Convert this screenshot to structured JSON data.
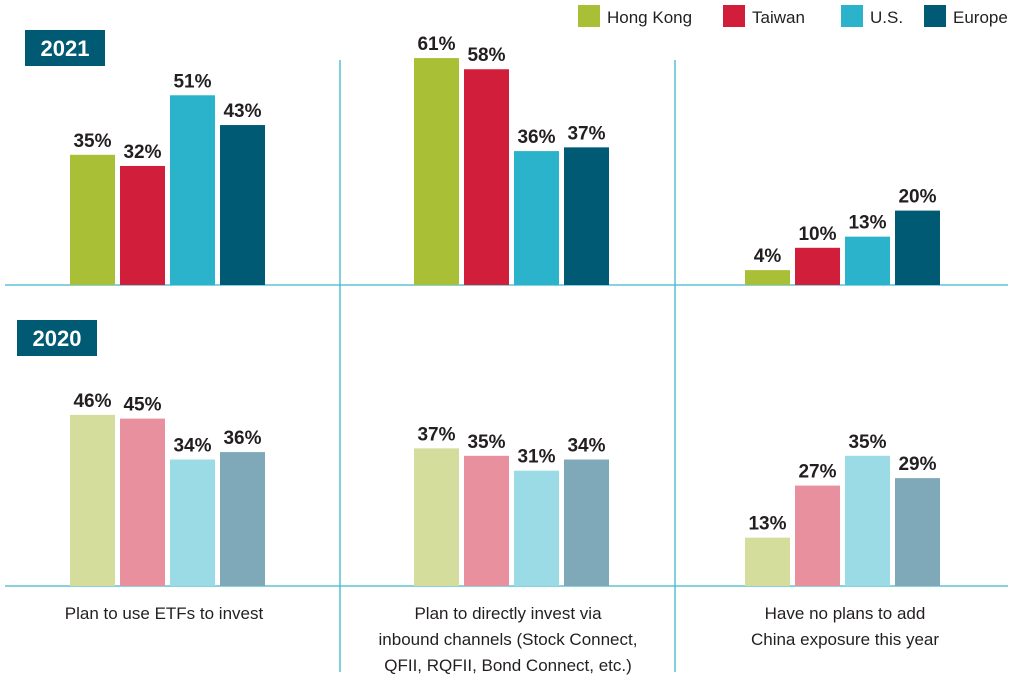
{
  "chart_data": {
    "type": "bar",
    "categories": [
      "Plan to use ETFs to invest",
      "Plan to directly invest via inbound channels (Stock Connect, QFII, RQFII, Bond Connect, etc.)",
      "Have no plans to add China exposure this year"
    ],
    "category_lines": [
      [
        "Plan to use ETFs to invest"
      ],
      [
        "Plan to directly invest via",
        "inbound channels (Stock Connect,",
        "QFII, RQFII, Bond Connect, etc.)"
      ],
      [
        "Have no plans to add",
        "China exposure this year"
      ]
    ],
    "legend": [
      "Hong Kong",
      "Taiwan",
      "U.S.",
      "Europe"
    ],
    "legend_position": "top-right",
    "panels": [
      {
        "year": "2021",
        "series": [
          {
            "name": "Hong Kong",
            "color": "#a9bf35",
            "values": [
              35,
              61,
              4
            ]
          },
          {
            "name": "Taiwan",
            "color": "#d11f3b",
            "values": [
              32,
              58,
              10
            ]
          },
          {
            "name": "U.S.",
            "color": "#2ab3cb",
            "values": [
              51,
              36,
              13
            ]
          },
          {
            "name": "Europe",
            "color": "#005a73",
            "values": [
              43,
              37,
              20
            ]
          }
        ]
      },
      {
        "year": "2020",
        "series": [
          {
            "name": "Hong Kong",
            "color": "#d5dd9c",
            "values": [
              46,
              37,
              13
            ]
          },
          {
            "name": "Taiwan",
            "color": "#e8909d",
            "values": [
              45,
              35,
              27
            ]
          },
          {
            "name": "U.S.",
            "color": "#9adbe6",
            "values": [
              34,
              31,
              35
            ]
          },
          {
            "name": "Europe",
            "color": "#7fa9b8",
            "values": [
              36,
              34,
              29
            ]
          }
        ]
      }
    ],
    "value_suffix": "%",
    "grid": false,
    "year_badge_color": "#005a73",
    "divider_color": "#3fb6cd"
  }
}
